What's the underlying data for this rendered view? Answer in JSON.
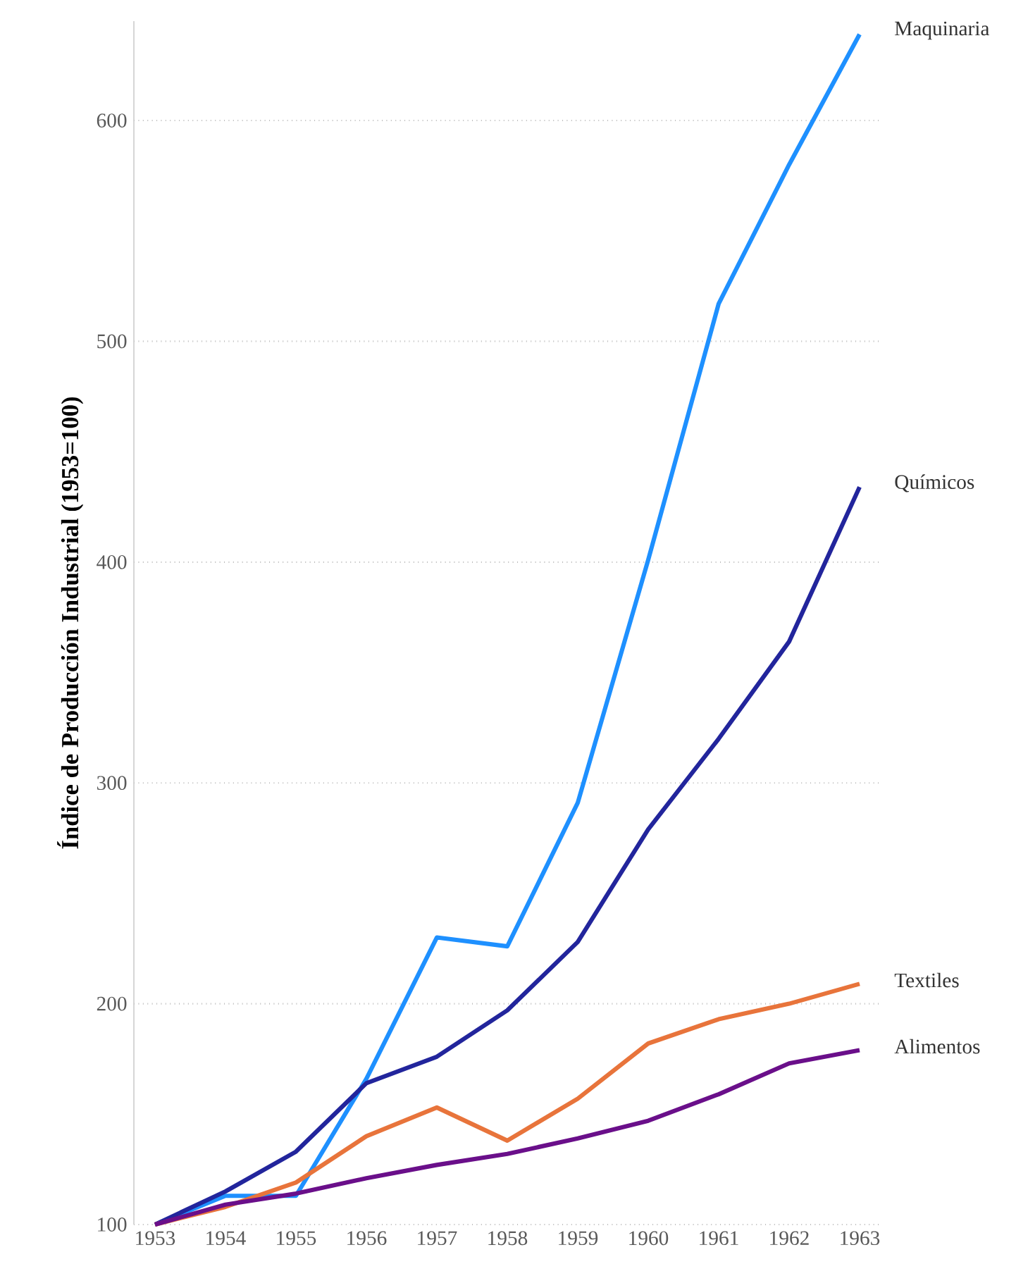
{
  "chart_data": {
    "type": "line",
    "ylabel": "Índice de Producción Industrial (1953=100)",
    "x": [
      1953,
      1954,
      1955,
      1956,
      1957,
      1958,
      1959,
      1960,
      1961,
      1962,
      1963
    ],
    "series": [
      {
        "name": "Maquinaria",
        "color": "#1e90ff",
        "values": [
          100,
          113,
          113,
          166,
          230,
          226,
          291,
          401,
          517,
          580,
          639
        ]
      },
      {
        "name": "Químicos",
        "color": "#22259c",
        "values": [
          100,
          115,
          133,
          164,
          176,
          197,
          228,
          279,
          320,
          364,
          434
        ]
      },
      {
        "name": "Textiles",
        "color": "#e8743b",
        "values": [
          100,
          108,
          119,
          140,
          153,
          138,
          157,
          182,
          193,
          200,
          209
        ]
      },
      {
        "name": "Alimentos",
        "color": "#6a0f8a",
        "values": [
          100,
          109,
          114,
          121,
          127,
          132,
          139,
          147,
          159,
          173,
          179
        ]
      }
    ],
    "xlim": [
      1952.7,
      1963.3
    ],
    "xticks": [
      1953,
      1954,
      1955,
      1956,
      1957,
      1958,
      1959,
      1960,
      1961,
      1962,
      1963
    ],
    "ylim": [
      100,
      645
    ],
    "yticks": [
      100,
      200,
      300,
      400,
      500,
      600
    ],
    "grid": "y",
    "legend": false,
    "marker": "none",
    "line_style": "solid"
  }
}
